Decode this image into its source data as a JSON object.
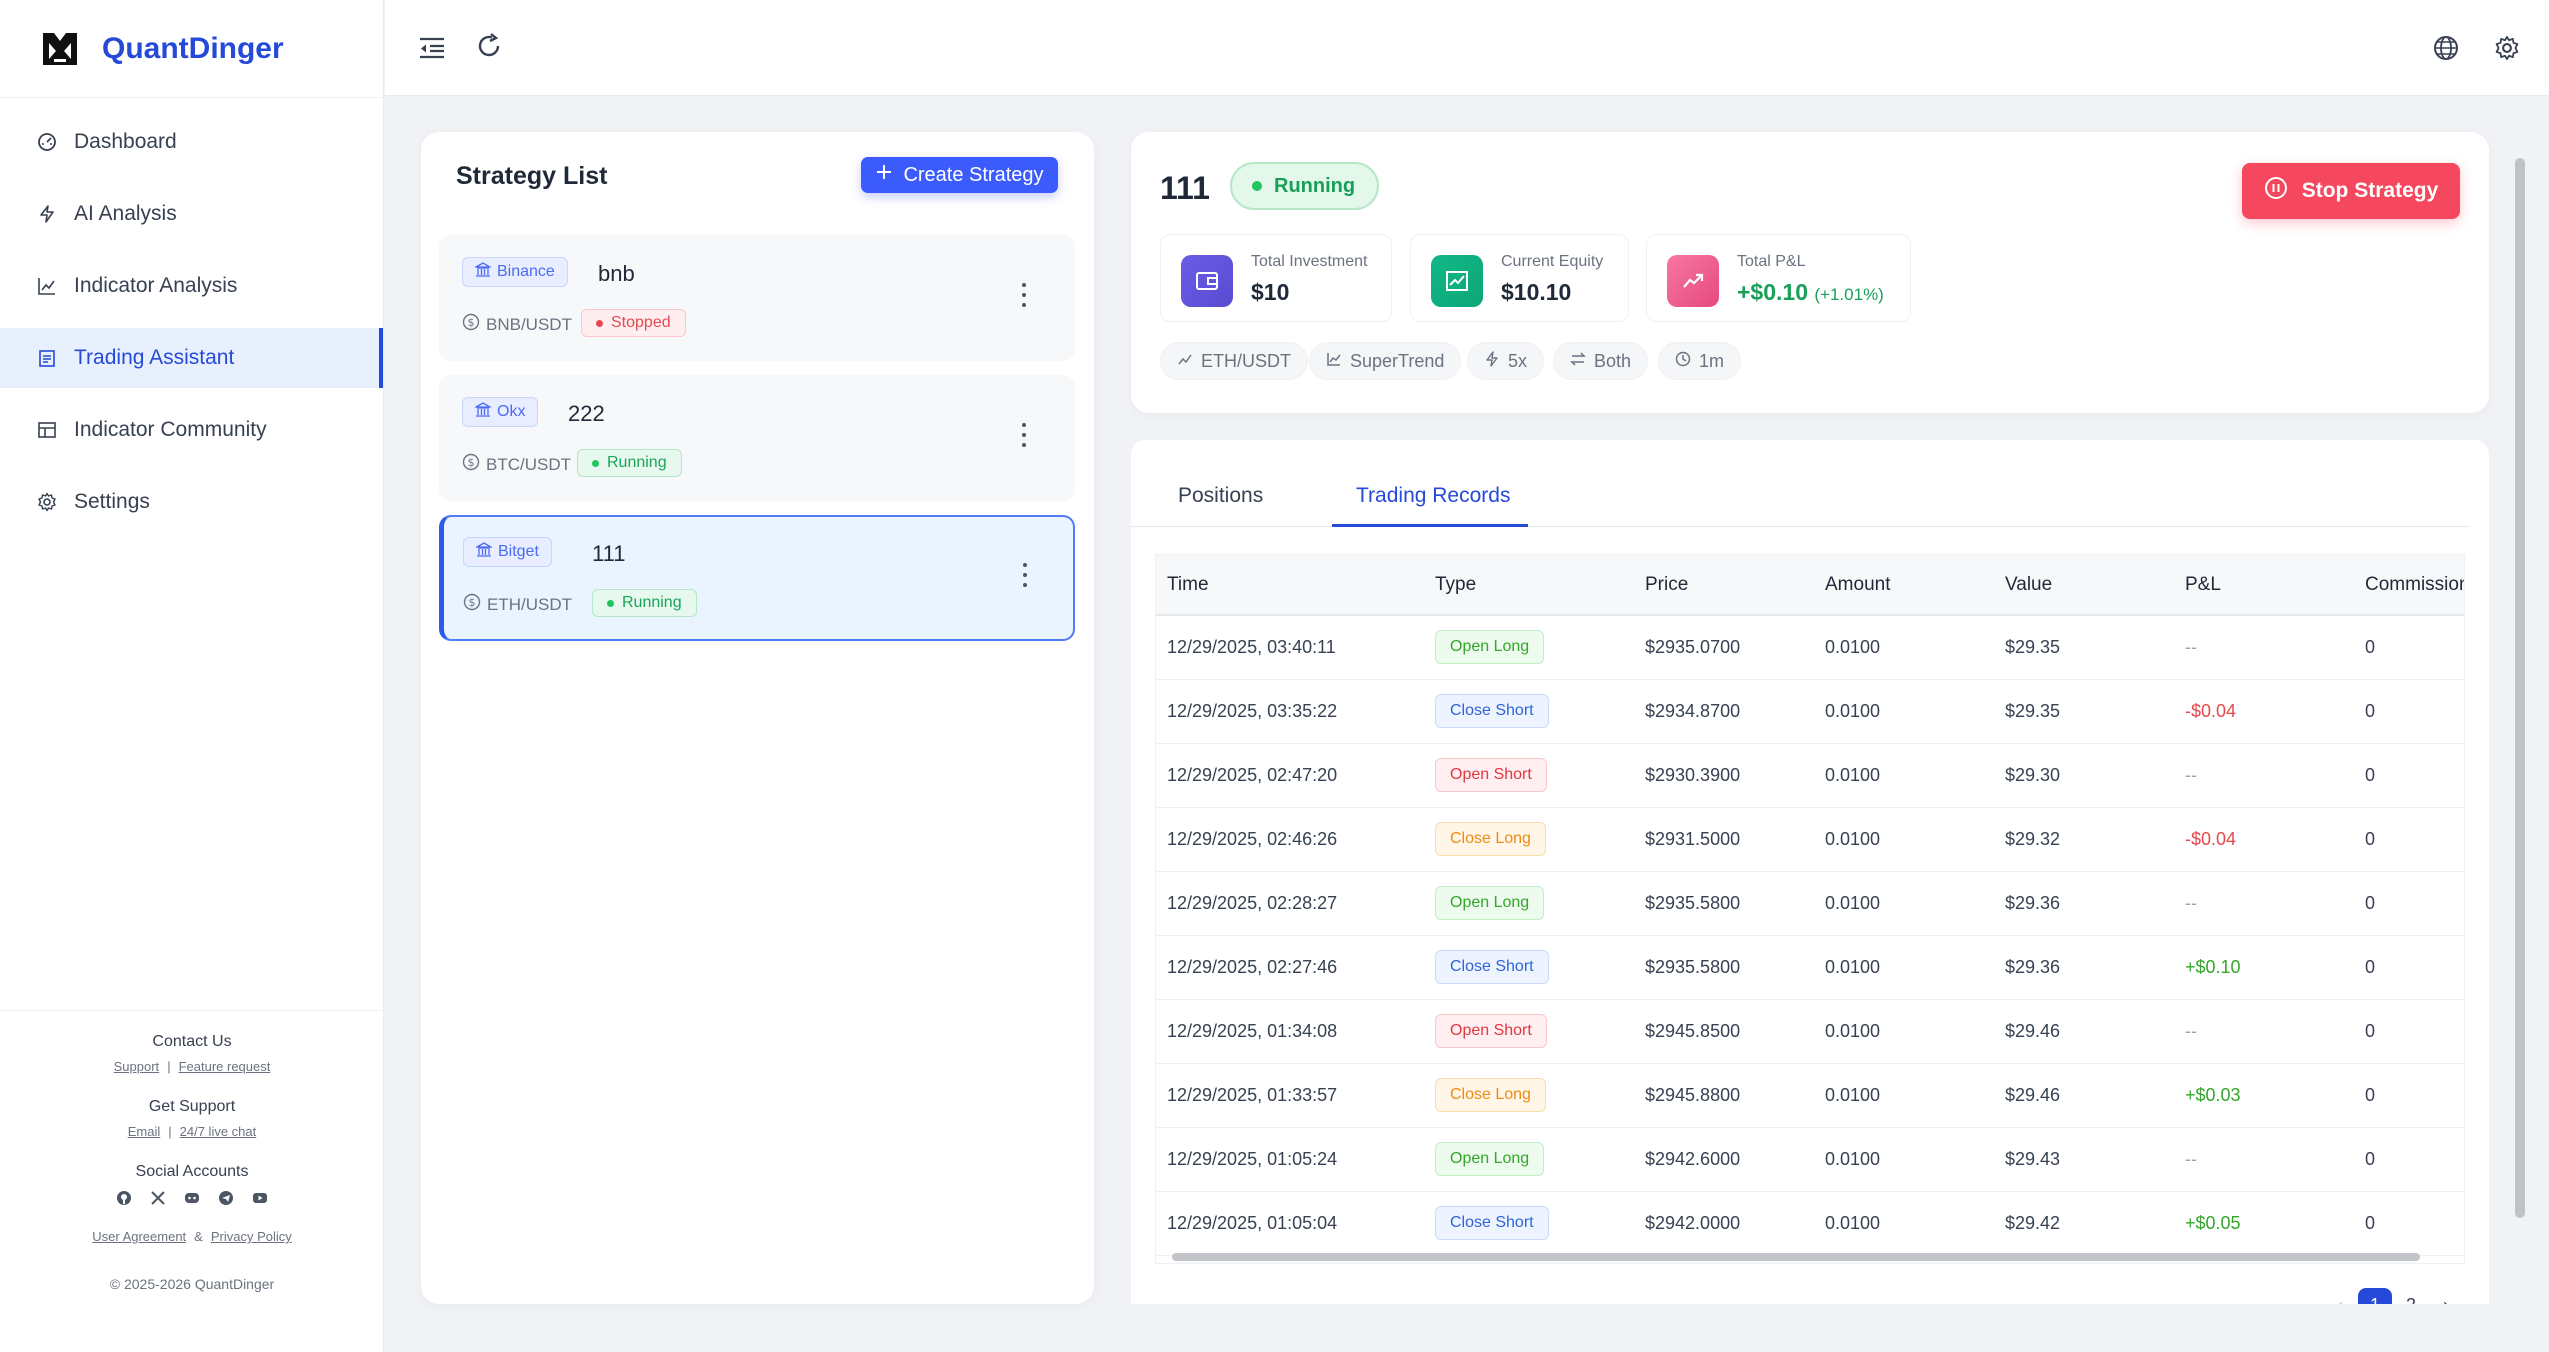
{
  "app": {
    "name": "QuantDinger"
  },
  "sidebar": {
    "items": [
      {
        "label": "Dashboard",
        "icon": "dashboard-icon"
      },
      {
        "label": "AI Analysis",
        "icon": "lightning-icon"
      },
      {
        "label": "Indicator Analysis",
        "icon": "line-chart-icon"
      },
      {
        "label": "Trading Assistant",
        "icon": "clipboard-icon"
      },
      {
        "label": "Indicator Community",
        "icon": "community-icon"
      },
      {
        "label": "Settings",
        "icon": "gear-icon"
      }
    ],
    "active_index": 3,
    "footer": {
      "contact_title": "Contact Us",
      "contact_links": [
        "Support",
        "Feature request"
      ],
      "support_title": "Get Support",
      "support_links": [
        "Email",
        "24/7 live chat"
      ],
      "social_title": "Social Accounts",
      "social_icons": [
        "github-icon",
        "x-icon",
        "discord-icon",
        "telegram-icon",
        "youtube-icon"
      ],
      "legal_links": [
        "User Agreement",
        "Privacy Policy"
      ],
      "legal_sep": "&",
      "copyright": "© 2025-2026 QuantDinger"
    }
  },
  "topbar": {
    "icons": [
      "menu-fold-icon",
      "refresh-icon",
      "globe-icon",
      "gear-icon"
    ]
  },
  "strategy_list": {
    "title": "Strategy List",
    "create_label": "Create Strategy",
    "items": [
      {
        "exchange": "Binance",
        "name": "bnb",
        "pair": "BNB/USDT",
        "status": "Stopped"
      },
      {
        "exchange": "Okx",
        "name": "222",
        "pair": "BTC/USDT",
        "status": "Running"
      },
      {
        "exchange": "Bitget",
        "name": "111",
        "pair": "ETH/USDT",
        "status": "Running"
      }
    ],
    "selected_index": 2
  },
  "detail": {
    "name": "111",
    "status": "Running",
    "stop_label": "Stop Strategy",
    "metrics": [
      {
        "label": "Total Investment",
        "value": "$10",
        "icon": "wallet-icon"
      },
      {
        "label": "Current Equity",
        "value": "$10.10",
        "icon": "equity-chart-icon"
      },
      {
        "label": "Total P&L",
        "value": "+$0.10",
        "sub": "(+1.01%)",
        "icon": "trend-up-icon"
      }
    ],
    "chips": [
      {
        "label": "ETH/USDT",
        "icon": "line-chart-icon"
      },
      {
        "label": "SuperTrend",
        "icon": "line-chart-icon"
      },
      {
        "label": "5x",
        "icon": "lightning-icon"
      },
      {
        "label": "Both",
        "icon": "swap-icon"
      },
      {
        "label": "1m",
        "icon": "clock-icon"
      }
    ]
  },
  "records": {
    "tabs": [
      "Positions",
      "Trading Records"
    ],
    "active_tab": 1,
    "columns": [
      "Time",
      "Type",
      "Price",
      "Amount",
      "Value",
      "P&L",
      "Commission"
    ],
    "rows": [
      {
        "time": "12/29/2025, 03:40:11",
        "type": "Open Long",
        "price": "$2935.0700",
        "amount": "0.0100",
        "value": "$29.35",
        "pl": "--",
        "commission": "0"
      },
      {
        "time": "12/29/2025, 03:35:22",
        "type": "Close Short",
        "price": "$2934.8700",
        "amount": "0.0100",
        "value": "$29.35",
        "pl": "-$0.04",
        "commission": "0"
      },
      {
        "time": "12/29/2025, 02:47:20",
        "type": "Open Short",
        "price": "$2930.3900",
        "amount": "0.0100",
        "value": "$29.30",
        "pl": "--",
        "commission": "0"
      },
      {
        "time": "12/29/2025, 02:46:26",
        "type": "Close Long",
        "price": "$2931.5000",
        "amount": "0.0100",
        "value": "$29.32",
        "pl": "-$0.04",
        "commission": "0"
      },
      {
        "time": "12/29/2025, 02:28:27",
        "type": "Open Long",
        "price": "$2935.5800",
        "amount": "0.0100",
        "value": "$29.36",
        "pl": "--",
        "commission": "0"
      },
      {
        "time": "12/29/2025, 02:27:46",
        "type": "Close Short",
        "price": "$2935.5800",
        "amount": "0.0100",
        "value": "$29.36",
        "pl": "+$0.10",
        "commission": "0"
      },
      {
        "time": "12/29/2025, 01:34:08",
        "type": "Open Short",
        "price": "$2945.8500",
        "amount": "0.0100",
        "value": "$29.46",
        "pl": "--",
        "commission": "0"
      },
      {
        "time": "12/29/2025, 01:33:57",
        "type": "Close Long",
        "price": "$2945.8800",
        "amount": "0.0100",
        "value": "$29.46",
        "pl": "+$0.03",
        "commission": "0"
      },
      {
        "time": "12/29/2025, 01:05:24",
        "type": "Open Long",
        "price": "$2942.6000",
        "amount": "0.0100",
        "value": "$29.43",
        "pl": "--",
        "commission": "0"
      },
      {
        "time": "12/29/2025, 01:05:04",
        "type": "Close Short",
        "price": "$2942.0000",
        "amount": "0.0100",
        "value": "$29.42",
        "pl": "+$0.05",
        "commission": "0"
      }
    ],
    "pagination": {
      "pages": [
        "1",
        "2"
      ],
      "current": "1"
    }
  },
  "colors": {
    "brand": "#2549d9",
    "stop": "#f5475d",
    "running": "#18a058"
  }
}
